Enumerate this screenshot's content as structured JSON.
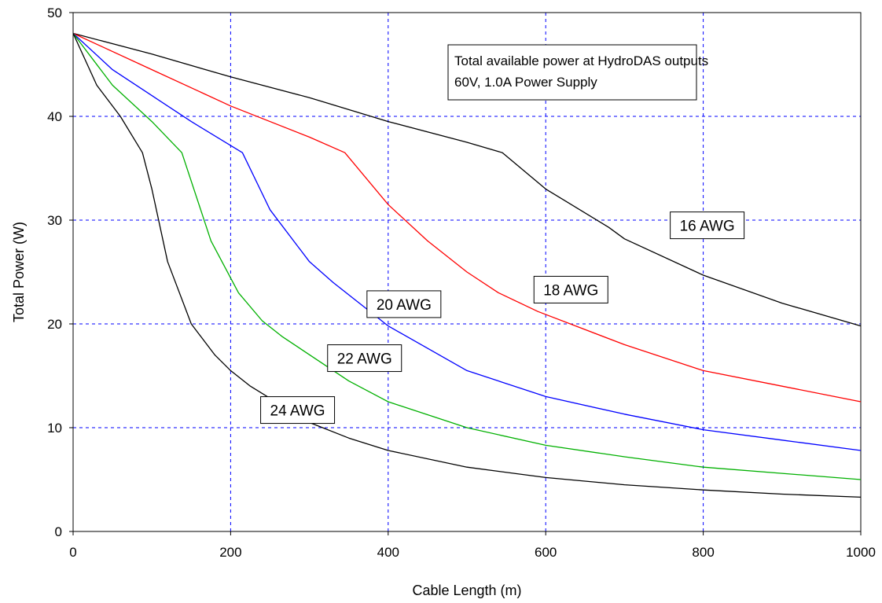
{
  "chart_data": {
    "type": "line",
    "xlabel": "Cable Length (m)",
    "ylabel": "Total Power (W)",
    "xlim": [
      0,
      1000
    ],
    "ylim": [
      0,
      50
    ],
    "xticks": [
      0,
      200,
      400,
      600,
      800,
      1000
    ],
    "yticks": [
      0,
      10,
      20,
      30,
      40,
      50
    ],
    "grid": true,
    "annotation_lines": [
      "Total available power at HydroDAS outputs",
      "60V, 1.0A Power Supply"
    ],
    "series": [
      {
        "name": "16 AWG",
        "color": "#000000",
        "x": [
          0,
          100,
          200,
          300,
          400,
          500,
          545,
          600,
          680,
          700,
          800,
          900,
          1000
        ],
        "y": [
          48,
          46,
          43.8,
          41.8,
          39.5,
          37.5,
          36.5,
          33.0,
          29.3,
          28.2,
          24.7,
          22.0,
          19.8
        ]
      },
      {
        "name": "18 AWG",
        "color": "#ff0000",
        "x": [
          0,
          100,
          200,
          300,
          345,
          400,
          450,
          500,
          540,
          590,
          700,
          800,
          900,
          1000
        ],
        "y": [
          48,
          44.5,
          41,
          38,
          36.5,
          31.5,
          28,
          25,
          23,
          21.2,
          18,
          15.5,
          14,
          12.5
        ]
      },
      {
        "name": "20 AWG",
        "color": "#0000ff",
        "x": [
          0,
          50,
          100,
          150,
          215,
          250,
          300,
          330,
          380,
          400,
          500,
          600,
          700,
          800,
          900,
          1000
        ],
        "y": [
          48,
          44.5,
          42,
          39.5,
          36.5,
          31,
          26,
          24,
          21,
          19.8,
          15.5,
          13,
          11.3,
          9.8,
          8.8,
          7.8
        ]
      },
      {
        "name": "22 AWG",
        "color": "#00b000",
        "x": [
          0,
          50,
          100,
          138,
          175,
          210,
          240,
          265,
          350,
          400,
          500,
          600,
          700,
          800,
          900,
          1000
        ],
        "y": [
          48,
          43,
          39.5,
          36.5,
          28,
          23,
          20.3,
          18.8,
          14.5,
          12.5,
          10,
          8.3,
          7.2,
          6.2,
          5.6,
          5.0
        ]
      },
      {
        "name": "24 AWG",
        "color": "#000000",
        "x": [
          0,
          30,
          60,
          88,
          100,
          120,
          150,
          180,
          200,
          225,
          300,
          350,
          400,
          500,
          600,
          700,
          800,
          900,
          1000
        ],
        "y": [
          48,
          43,
          40,
          36.5,
          33,
          26,
          20,
          17,
          15.5,
          14,
          10.5,
          9,
          7.8,
          6.2,
          5.2,
          4.5,
          4,
          3.6,
          3.3
        ]
      }
    ],
    "label_positions": {
      "16 AWG": [
        805,
        29.5
      ],
      "18 AWG": [
        632,
        23.3
      ],
      "20 AWG": [
        420,
        21.9
      ],
      "22 AWG": [
        370,
        16.7
      ],
      "24 AWG": [
        285,
        11.7
      ]
    }
  }
}
